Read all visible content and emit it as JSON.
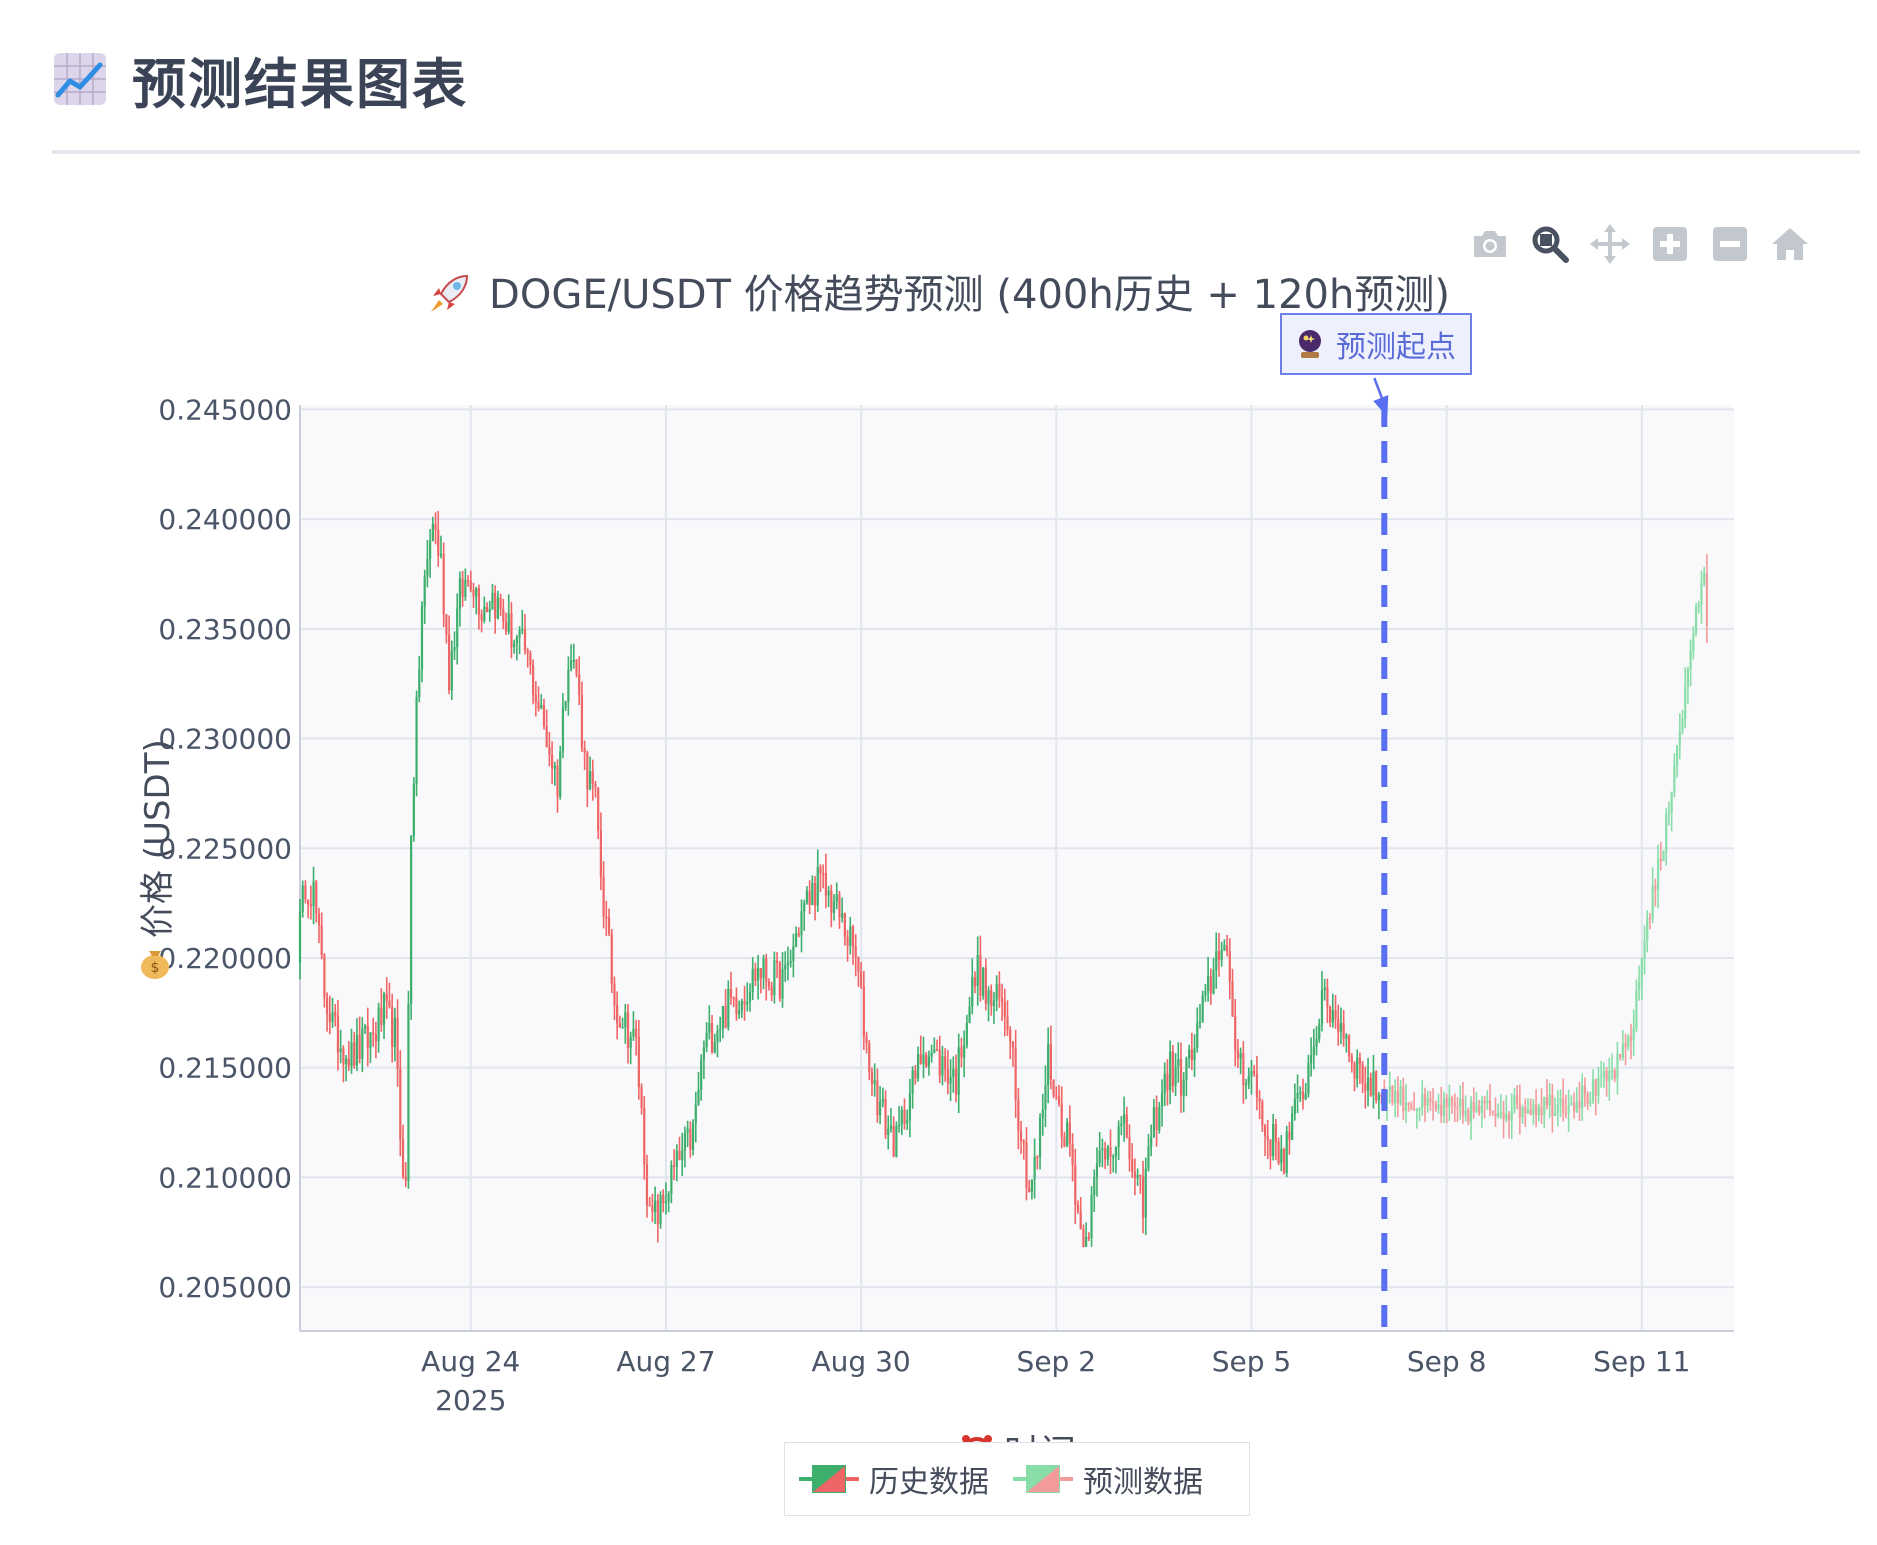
{
  "header": {
    "title": "预测结果图表",
    "icon": "chart-increasing-icon"
  },
  "modebar": {
    "buttons": [
      "camera-icon",
      "zoom-icon",
      "pan-icon",
      "zoom-in-icon",
      "zoom-out-icon",
      "home-icon"
    ]
  },
  "annotation": {
    "text": "预测起点",
    "x": "2025-09-07T01:00",
    "icon": "crystal-ball-icon"
  },
  "colors": {
    "hist_up": "#3dae6c",
    "hist_down": "#ef6565",
    "pred_up": "#89dda8",
    "pred_down": "#f39a9a",
    "start_line": "#5a6ef0",
    "plot_bg": "#f9f9fb",
    "grid": "#e1e5ee"
  },
  "chart_data": {
    "type": "candlestick",
    "title": "DOGE/USDT 价格趋势预测 (400h历史 + 120h预测)",
    "title_icon": "rocket-icon",
    "xlabel": "时间",
    "xlabel_icon": "alarm-clock-icon",
    "ylabel": "价格 (USDT)",
    "ylabel_icon": "money-bag-icon",
    "ylim": [
      0.203,
      0.2452
    ],
    "yticks": [
      0.205,
      0.21,
      0.215,
      0.22,
      0.225,
      0.23,
      0.235,
      0.24,
      0.245
    ],
    "ytick_labels": [
      "0.205000",
      "0.210000",
      "0.215000",
      "0.220000",
      "0.225000",
      "0.230000",
      "0.235000",
      "0.240000",
      "0.245000"
    ],
    "xlim": [
      "2025-08-21T09:00",
      "2025-09-12T10:00"
    ],
    "xticks": [
      "2025-08-24",
      "2025-08-27",
      "2025-08-30",
      "2025-09-02",
      "2025-09-05",
      "2025-09-08",
      "2025-09-11"
    ],
    "xtick_labels": [
      "Aug 24",
      "Aug 27",
      "Aug 30",
      "Sep 2",
      "Sep 5",
      "Sep 8",
      "Sep 11"
    ],
    "year_label": "2025",
    "legend": [
      {
        "name": "历史数据",
        "icon": "candle-legend-historical"
      },
      {
        "name": "预测数据",
        "icon": "candle-legend-prediction"
      }
    ],
    "hist_start": "2025-08-21T09:00",
    "hist_hours": 400,
    "pred_hours": 120,
    "hist_anchors": [
      [
        0,
        0.2205
      ],
      [
        3,
        0.2235
      ],
      [
        6,
        0.223
      ],
      [
        10,
        0.2185
      ],
      [
        14,
        0.2165
      ],
      [
        20,
        0.2155
      ],
      [
        28,
        0.2165
      ],
      [
        32,
        0.2175
      ],
      [
        36,
        0.2165
      ],
      [
        38,
        0.212
      ],
      [
        40,
        0.2095
      ],
      [
        42,
        0.226
      ],
      [
        46,
        0.236
      ],
      [
        50,
        0.24
      ],
      [
        53,
        0.238
      ],
      [
        56,
        0.233
      ],
      [
        60,
        0.2365
      ],
      [
        64,
        0.2375
      ],
      [
        68,
        0.236
      ],
      [
        72,
        0.2365
      ],
      [
        76,
        0.2355
      ],
      [
        80,
        0.2345
      ],
      [
        84,
        0.234
      ],
      [
        88,
        0.232
      ],
      [
        92,
        0.23
      ],
      [
        96,
        0.228
      ],
      [
        100,
        0.234
      ],
      [
        103,
        0.233
      ],
      [
        106,
        0.229
      ],
      [
        110,
        0.227
      ],
      [
        113,
        0.2225
      ],
      [
        117,
        0.218
      ],
      [
        121,
        0.217
      ],
      [
        125,
        0.216
      ],
      [
        130,
        0.208
      ],
      [
        134,
        0.2085
      ],
      [
        138,
        0.21
      ],
      [
        142,
        0.211
      ],
      [
        146,
        0.212
      ],
      [
        150,
        0.216
      ],
      [
        155,
        0.217
      ],
      [
        160,
        0.218
      ],
      [
        165,
        0.2185
      ],
      [
        170,
        0.2195
      ],
      [
        175,
        0.219
      ],
      [
        180,
        0.219
      ],
      [
        186,
        0.222
      ],
      [
        192,
        0.2235
      ],
      [
        198,
        0.2225
      ],
      [
        203,
        0.221
      ],
      [
        206,
        0.22
      ],
      [
        210,
        0.216
      ],
      [
        213,
        0.214
      ],
      [
        217,
        0.2125
      ],
      [
        221,
        0.2115
      ],
      [
        225,
        0.2135
      ],
      [
        228,
        0.2145
      ],
      [
        231,
        0.216
      ],
      [
        235,
        0.2155
      ],
      [
        239,
        0.215
      ],
      [
        243,
        0.2145
      ],
      [
        247,
        0.2175
      ],
      [
        251,
        0.2195
      ],
      [
        255,
        0.218
      ],
      [
        259,
        0.218
      ],
      [
        263,
        0.217
      ],
      [
        266,
        0.213
      ],
      [
        270,
        0.2095
      ],
      [
        273,
        0.211
      ],
      [
        277,
        0.2155
      ],
      [
        281,
        0.213
      ],
      [
        285,
        0.2115
      ],
      [
        289,
        0.2075
      ],
      [
        292,
        0.208
      ],
      [
        296,
        0.211
      ],
      [
        299,
        0.2115
      ],
      [
        303,
        0.212
      ],
      [
        306,
        0.212
      ],
      [
        309,
        0.2095
      ],
      [
        312,
        0.209
      ],
      [
        315,
        0.212
      ],
      [
        318,
        0.2135
      ],
      [
        322,
        0.215
      ],
      [
        326,
        0.2145
      ],
      [
        330,
        0.2155
      ],
      [
        334,
        0.2175
      ],
      [
        338,
        0.2195
      ],
      [
        341,
        0.221
      ],
      [
        343,
        0.22
      ],
      [
        345,
        0.2165
      ],
      [
        349,
        0.215
      ],
      [
        353,
        0.2145
      ],
      [
        357,
        0.212
      ],
      [
        361,
        0.2115
      ],
      [
        364,
        0.211
      ],
      [
        367,
        0.2125
      ],
      [
        370,
        0.2135
      ],
      [
        373,
        0.215
      ],
      [
        376,
        0.217
      ],
      [
        379,
        0.218
      ],
      [
        382,
        0.2175
      ],
      [
        385,
        0.217
      ],
      [
        388,
        0.216
      ],
      [
        391,
        0.215
      ],
      [
        394,
        0.2145
      ],
      [
        397,
        0.214
      ],
      [
        400,
        0.214
      ]
    ],
    "pred_anchors": [
      [
        0,
        0.214
      ],
      [
        15,
        0.2132
      ],
      [
        30,
        0.213
      ],
      [
        50,
        0.2132
      ],
      [
        70,
        0.2135
      ],
      [
        80,
        0.214
      ],
      [
        88,
        0.2152
      ],
      [
        93,
        0.217
      ],
      [
        97,
        0.221
      ],
      [
        100,
        0.223
      ],
      [
        104,
        0.225
      ],
      [
        108,
        0.229
      ],
      [
        112,
        0.232
      ],
      [
        116,
        0.236
      ],
      [
        119,
        0.237
      ],
      [
        120,
        0.2355
      ]
    ]
  }
}
